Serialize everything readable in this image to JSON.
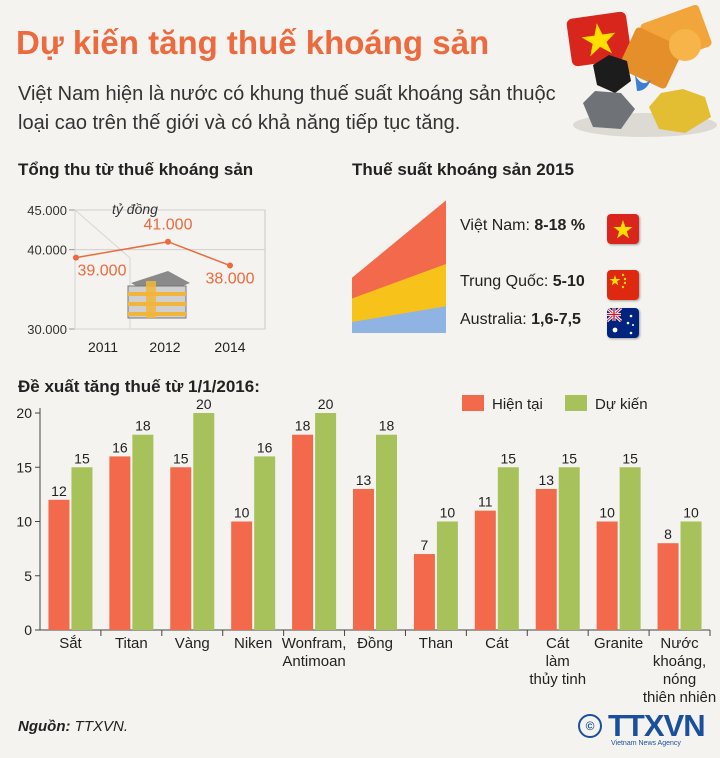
{
  "title": "Dự kiến tăng thuế khoáng sản",
  "subtitle": "Việt Nam hiện là nước có khung thuế suất khoáng sản thuộc loại cao trên thế giới và có khả năng tiếp tục tăng.",
  "colors": {
    "accent": "#ec6a3e",
    "current": "#f26a4b",
    "expected": "#a7c25b",
    "text": "#222222"
  },
  "revenue_section": {
    "title": "Tổng thu từ thuế khoáng sản"
  },
  "rate_section": {
    "title": "Thuế suất khoáng sản 2015"
  },
  "proposal_section": {
    "title": "Đề xuất tăng thuế từ 1/1/2016:"
  },
  "source": {
    "label": "Nguồn:",
    "value": "TTXVN."
  },
  "logo": {
    "text": "TTXVN",
    "subtitle": "Vietnam News Agency",
    "copyright": "©"
  },
  "chart_data": [
    {
      "type": "line",
      "title": "Tổng thu từ thuế khoáng sản",
      "unit": "tỷ đồng",
      "x": [
        "2011",
        "2012",
        "2014"
      ],
      "y": [
        39000,
        41000,
        38000
      ],
      "data_labels": [
        "39.000",
        "41.000",
        "38.000"
      ],
      "ylim": [
        30000,
        45000
      ],
      "yticks": [
        30000,
        40000,
        45000
      ],
      "ytick_labels": [
        "30.000",
        "40.000",
        "45.000"
      ],
      "grid": true
    },
    {
      "type": "area",
      "title": "Thuế suất khoáng sản 2015",
      "series": [
        {
          "name": "Việt Nam",
          "value": "8-18 %",
          "min": 8,
          "max": 18,
          "color": "#f26a4b",
          "flag": "vietnam-flag-icon"
        },
        {
          "name": "Trung Quốc",
          "value": "5-10",
          "min": 5,
          "max": 10,
          "color": "#f7c31b",
          "flag": "china-flag-icon"
        },
        {
          "name": "Australia",
          "value": "1,6-7,5",
          "min": 1.6,
          "max": 7.5,
          "color": "#8fb3e2",
          "flag": "australia-flag-icon"
        }
      ]
    },
    {
      "type": "bar",
      "title": "Đề xuất tăng thuế từ 1/1/2016:",
      "categories": [
        "Sắt",
        "Titan",
        "Vàng",
        "Niken",
        "Wonfram, Antimoan",
        "Đồng",
        "Than",
        "Cát",
        "Cát làm thủy tinh",
        "Granite",
        "Nước khoáng, nóng thiên nhiên"
      ],
      "category_lines": [
        [
          "Sắt"
        ],
        [
          "Titan"
        ],
        [
          "Vàng"
        ],
        [
          "Niken"
        ],
        [
          "Wonfram,",
          "Antimoan"
        ],
        [
          "Đồng"
        ],
        [
          "Than"
        ],
        [
          "Cát"
        ],
        [
          "Cát",
          "làm",
          "thủy tinh"
        ],
        [
          "Granite"
        ],
        [
          "Nước",
          "khoáng,",
          "nóng",
          "thiên nhiên"
        ]
      ],
      "series": [
        {
          "name": "Hiện tại",
          "color": "#f26a4b",
          "values": [
            12,
            16,
            15,
            10,
            18,
            13,
            7,
            11,
            13,
            10,
            8
          ]
        },
        {
          "name": "Dự kiến",
          "color": "#a7c25b",
          "values": [
            15,
            18,
            20,
            16,
            20,
            18,
            10,
            15,
            15,
            15,
            10
          ]
        }
      ],
      "ylim": [
        0,
        20
      ],
      "yticks": [
        0,
        5,
        10,
        15,
        20
      ],
      "legend": "top-right",
      "grid": false
    }
  ]
}
